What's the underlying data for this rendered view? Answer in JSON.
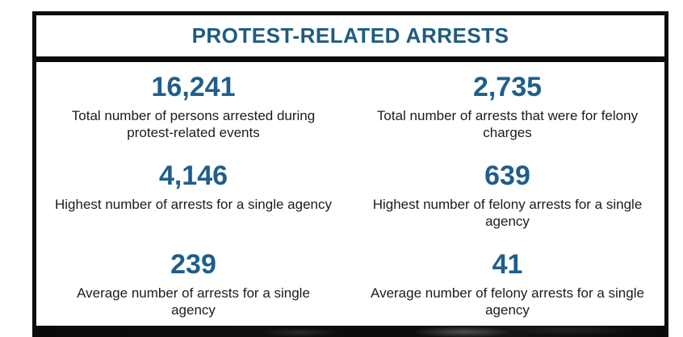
{
  "page": {
    "background_color": "#ffffff",
    "accent_color": "#1f5e8a",
    "border_color": "#0d0d0d"
  },
  "card": {
    "header": {
      "title": "PROTEST-RELATED ARRESTS"
    },
    "stats": [
      {
        "value": "16,241",
        "label": "Total number of persons arrested during protest-related events"
      },
      {
        "value": "2,735",
        "label": "Total number of arrests that were for felony charges"
      },
      {
        "value": "4,146",
        "label": "Highest number of arrests for a single agency"
      },
      {
        "value": "639",
        "label": "Highest number of felony arrests for a single agency"
      },
      {
        "value": "239",
        "label": "Average number of arrests for a single agency"
      },
      {
        "value": "41",
        "label": "Average number of felony arrests for a single agency"
      }
    ],
    "photo_strip": {
      "base_color": "#0a0a0a",
      "description": "dark photo edge visible below card"
    }
  }
}
